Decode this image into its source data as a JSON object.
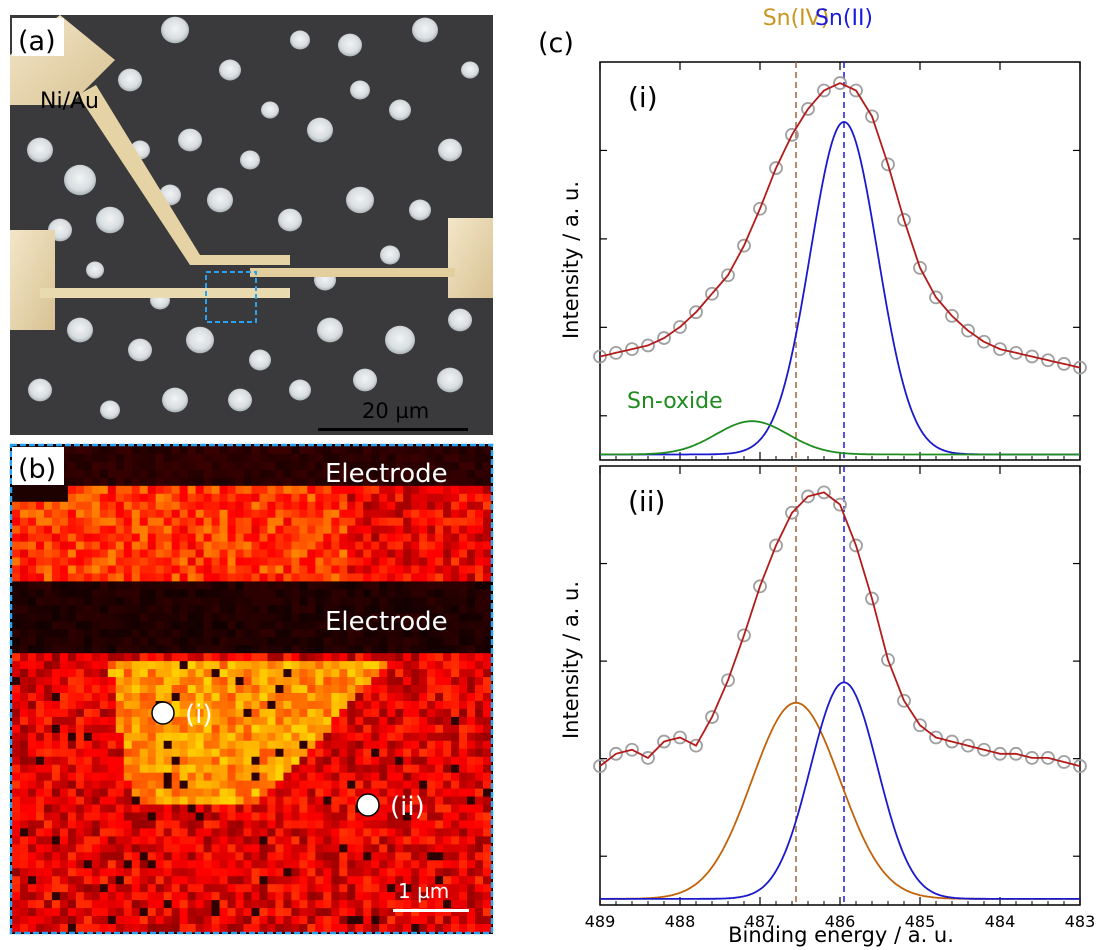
{
  "panel_a": {
    "label": "(a)",
    "electrode_label": "Ni/Au",
    "scalebar_label": "20 µm"
  },
  "panel_b": {
    "label": "(b)",
    "electrode_top_label": "Electrode",
    "electrode_mid_label": "Electrode",
    "point_i_label": "(i)",
    "point_ii_label": "(ii)",
    "scalebar_label": "1 µm"
  },
  "panel_c": {
    "label": "(c)",
    "ref_labels": [
      {
        "text": "Sn(IV)",
        "energy": 486.55,
        "color": "#c8961e"
      },
      {
        "text": "Sn(II)",
        "energy": 485.95,
        "color": "#1a1adb"
      }
    ],
    "xlabel": "Binding energy / a. u.",
    "ylabel": "Intensity / a. u.",
    "xlim": [
      489,
      483
    ],
    "xticks": [
      489,
      488,
      487,
      486,
      485,
      484,
      483
    ]
  },
  "chart_data": [
    {
      "type": "scatter",
      "panel": "(i)",
      "xlabel": "Binding energy / a. u.",
      "ylabel": "Intensity / a. u.",
      "xlim": [
        489,
        483
      ],
      "ylim": [
        0,
        1.05
      ],
      "annotation": "Sn-oxide",
      "series": [
        {
          "kind": "data",
          "style": "open-circle",
          "color": "#a0a0a0",
          "x": [
            489.0,
            488.8,
            488.6,
            488.4,
            488.2,
            488.0,
            487.8,
            487.6,
            487.4,
            487.2,
            487.0,
            486.8,
            486.6,
            486.4,
            486.2,
            486.0,
            485.8,
            485.6,
            485.4,
            485.2,
            485.0,
            484.8,
            484.6,
            484.4,
            484.2,
            484.0,
            483.8,
            483.6,
            483.4,
            483.2,
            483.0
          ],
          "y": [
            0.28,
            0.29,
            0.3,
            0.31,
            0.33,
            0.36,
            0.4,
            0.45,
            0.5,
            0.58,
            0.68,
            0.79,
            0.88,
            0.95,
            1.0,
            1.02,
            1.0,
            0.93,
            0.8,
            0.65,
            0.52,
            0.44,
            0.39,
            0.35,
            0.32,
            0.3,
            0.29,
            0.28,
            0.27,
            0.26,
            0.25
          ]
        },
        {
          "kind": "fit-total",
          "color": "#b31b1b",
          "components": [
            [
              486.0,
              0.72,
              0.42
            ],
            [
              487.1,
              0.09,
              0.45
            ]
          ],
          "baseline": 0.0,
          "offset": 0.23
        },
        {
          "kind": "component",
          "name": "Sn(II)",
          "color": "#1a1acc",
          "center": 485.95,
          "amplitude": 0.9,
          "width": 0.42
        },
        {
          "kind": "component",
          "name": "Sn-oxide",
          "color": "#1e8c1e",
          "center": 487.1,
          "amplitude": 0.09,
          "width": 0.45
        }
      ]
    },
    {
      "type": "scatter",
      "panel": "(ii)",
      "xlabel": "Binding energy / a. u.",
      "ylabel": "Intensity / a. u.",
      "xlim": [
        489,
        483
      ],
      "ylim": [
        0,
        1.05
      ],
      "series": [
        {
          "kind": "data",
          "style": "open-circle",
          "color": "#a0a0a0",
          "x": [
            489.0,
            488.8,
            488.6,
            488.4,
            488.2,
            488.0,
            487.8,
            487.6,
            487.4,
            487.2,
            487.0,
            486.8,
            486.6,
            486.4,
            486.2,
            486.0,
            485.8,
            485.6,
            485.4,
            485.2,
            485.0,
            484.8,
            484.6,
            484.4,
            484.2,
            484.0,
            483.8,
            483.6,
            483.4,
            483.2,
            483.0
          ],
          "y": [
            0.34,
            0.37,
            0.38,
            0.36,
            0.4,
            0.41,
            0.39,
            0.46,
            0.55,
            0.66,
            0.78,
            0.88,
            0.96,
            1.0,
            1.01,
            0.98,
            0.88,
            0.75,
            0.6,
            0.5,
            0.44,
            0.41,
            0.4,
            0.39,
            0.38,
            0.37,
            0.37,
            0.36,
            0.36,
            0.35,
            0.34
          ]
        },
        {
          "kind": "fit-total",
          "color": "#b31b1b"
        },
        {
          "kind": "component",
          "name": "Sn(IV)",
          "color": "#c0630a",
          "center": 486.55,
          "amplitude": 0.48,
          "width": 0.55
        },
        {
          "kind": "component",
          "name": "Sn(II)",
          "color": "#1a1acc",
          "center": 485.95,
          "amplitude": 0.53,
          "width": 0.42
        }
      ]
    }
  ]
}
